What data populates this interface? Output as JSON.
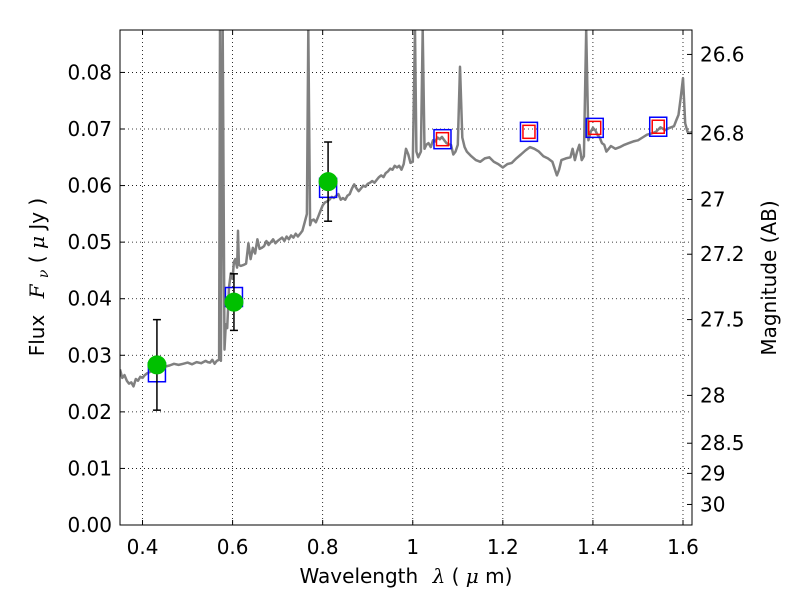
{
  "chart_data": {
    "type": "line",
    "xlabel_prefix": "Wavelength",
    "xlabel_symbol": "λ",
    "xlabel_unit_open": " (",
    "xlabel_unit_mu": "μ",
    "xlabel_unit_close": "m)",
    "ylabel_prefix": "Flux",
    "ylabel_symbol": "F",
    "ylabel_sub": "ν",
    "ylabel_unit_open": " ( ",
    "ylabel_unit_mu": "μ",
    "ylabel_unit_close": "Jy )",
    "y2label": "Magnitude (AB)",
    "xlim": [
      0.35,
      1.62
    ],
    "ylim": [
      0.0,
      0.0875
    ],
    "grid": true,
    "x_ticks": [
      {
        "v": 0.4,
        "label": "0.4"
      },
      {
        "v": 0.6,
        "label": "0.6"
      },
      {
        "v": 0.8,
        "label": "0.8"
      },
      {
        "v": 1.0,
        "label": "1"
      },
      {
        "v": 1.2,
        "label": "1.2"
      },
      {
        "v": 1.4,
        "label": "1.4"
      },
      {
        "v": 1.6,
        "label": "1.6"
      }
    ],
    "y_ticks": [
      {
        "v": 0.0,
        "label": "0.00"
      },
      {
        "v": 0.01,
        "label": "0.01"
      },
      {
        "v": 0.02,
        "label": "0.02"
      },
      {
        "v": 0.03,
        "label": "0.03"
      },
      {
        "v": 0.04,
        "label": "0.04"
      },
      {
        "v": 0.05,
        "label": "0.05"
      },
      {
        "v": 0.06,
        "label": "0.06"
      },
      {
        "v": 0.07,
        "label": "0.07"
      },
      {
        "v": 0.08,
        "label": "0.08"
      }
    ],
    "y2_ticks": [
      {
        "mag": 26.6,
        "label": "26.6"
      },
      {
        "mag": 26.8,
        "label": "26.8"
      },
      {
        "mag": 27.0,
        "label": "27"
      },
      {
        "mag": 27.2,
        "label": "27.2"
      },
      {
        "mag": 27.5,
        "label": "27.5"
      },
      {
        "mag": 28.0,
        "label": "28"
      },
      {
        "mag": 28.5,
        "label": "28.5"
      },
      {
        "mag": 29.0,
        "label": "29"
      },
      {
        "mag": 30.0,
        "label": "30"
      }
    ],
    "spectrum": {
      "color": "#808080",
      "points": [
        [
          0.35,
          0.0275
        ],
        [
          0.355,
          0.026
        ],
        [
          0.36,
          0.0265
        ],
        [
          0.365,
          0.0255
        ],
        [
          0.37,
          0.025
        ],
        [
          0.375,
          0.0252
        ],
        [
          0.38,
          0.0245
        ],
        [
          0.385,
          0.0258
        ],
        [
          0.39,
          0.0255
        ],
        [
          0.395,
          0.0262
        ],
        [
          0.4,
          0.026
        ],
        [
          0.405,
          0.0265
        ],
        [
          0.41,
          0.0268
        ],
        [
          0.415,
          0.027
        ],
        [
          0.42,
          0.0272
        ],
        [
          0.43,
          0.0275
        ],
        [
          0.44,
          0.0278
        ],
        [
          0.45,
          0.028
        ],
        [
          0.46,
          0.0282
        ],
        [
          0.47,
          0.0285
        ],
        [
          0.48,
          0.0283
        ],
        [
          0.49,
          0.0285
        ],
        [
          0.5,
          0.0287
        ],
        [
          0.51,
          0.0284
        ],
        [
          0.52,
          0.0288
        ],
        [
          0.53,
          0.0286
        ],
        [
          0.54,
          0.029
        ],
        [
          0.545,
          0.0288
        ],
        [
          0.55,
          0.0287
        ],
        [
          0.555,
          0.0292
        ],
        [
          0.56,
          0.0285
        ],
        [
          0.565,
          0.029
        ],
        [
          0.57,
          0.0292
        ],
        [
          0.572,
          0.0875
        ],
        [
          0.574,
          0.029
        ],
        [
          0.578,
          0.0875
        ],
        [
          0.582,
          0.031
        ],
        [
          0.585,
          0.0355
        ],
        [
          0.588,
          0.0348
        ],
        [
          0.592,
          0.042
        ],
        [
          0.596,
          0.0445
        ],
        [
          0.6,
          0.0435
        ],
        [
          0.603,
          0.0465
        ],
        [
          0.606,
          0.047
        ],
        [
          0.61,
          0.0455
        ],
        [
          0.612,
          0.052
        ],
        [
          0.614,
          0.046
        ],
        [
          0.618,
          0.0458
        ],
        [
          0.625,
          0.046
        ],
        [
          0.63,
          0.0462
        ],
        [
          0.635,
          0.0498
        ],
        [
          0.64,
          0.047
        ],
        [
          0.645,
          0.049
        ],
        [
          0.65,
          0.048
        ],
        [
          0.655,
          0.0505
        ],
        [
          0.66,
          0.0488
        ],
        [
          0.665,
          0.049
        ],
        [
          0.67,
          0.0493
        ],
        [
          0.675,
          0.0502
        ],
        [
          0.68,
          0.0495
        ],
        [
          0.685,
          0.05
        ],
        [
          0.69,
          0.0505
        ],
        [
          0.695,
          0.0498
        ],
        [
          0.7,
          0.0502
        ],
        [
          0.705,
          0.0505
        ],
        [
          0.71,
          0.0508
        ],
        [
          0.715,
          0.0502
        ],
        [
          0.72,
          0.051
        ],
        [
          0.725,
          0.0505
        ],
        [
          0.73,
          0.0512
        ],
        [
          0.735,
          0.0508
        ],
        [
          0.74,
          0.0515
        ],
        [
          0.745,
          0.051
        ],
        [
          0.75,
          0.0515
        ],
        [
          0.755,
          0.052
        ],
        [
          0.76,
          0.0535
        ],
        [
          0.765,
          0.055
        ],
        [
          0.768,
          0.0875
        ],
        [
          0.772,
          0.053
        ],
        [
          0.775,
          0.0538
        ],
        [
          0.78,
          0.054
        ],
        [
          0.785,
          0.0535
        ],
        [
          0.79,
          0.0545
        ],
        [
          0.795,
          0.0555
        ],
        [
          0.8,
          0.0565
        ],
        [
          0.805,
          0.057
        ],
        [
          0.81,
          0.0572
        ],
        [
          0.815,
          0.0575
        ],
        [
          0.82,
          0.058
        ],
        [
          0.825,
          0.0578
        ],
        [
          0.83,
          0.0582
        ],
        [
          0.835,
          0.0585
        ],
        [
          0.84,
          0.0575
        ],
        [
          0.845,
          0.0578
        ],
        [
          0.85,
          0.0575
        ],
        [
          0.855,
          0.0582
        ],
        [
          0.86,
          0.0585
        ],
        [
          0.865,
          0.0595
        ],
        [
          0.87,
          0.0602
        ],
        [
          0.875,
          0.0595
        ],
        [
          0.88,
          0.059
        ],
        [
          0.885,
          0.0595
        ],
        [
          0.89,
          0.06
        ],
        [
          0.895,
          0.0598
        ],
        [
          0.9,
          0.0603
        ],
        [
          0.905,
          0.0605
        ],
        [
          0.91,
          0.0608
        ],
        [
          0.915,
          0.0605
        ],
        [
          0.92,
          0.061
        ],
        [
          0.925,
          0.0615
        ],
        [
          0.93,
          0.0618
        ],
        [
          0.935,
          0.0615
        ],
        [
          0.94,
          0.0622
        ],
        [
          0.945,
          0.0625
        ],
        [
          0.95,
          0.063
        ],
        [
          0.955,
          0.0628
        ],
        [
          0.96,
          0.0635
        ],
        [
          0.965,
          0.0632
        ],
        [
          0.97,
          0.0635
        ],
        [
          0.975,
          0.0628
        ],
        [
          0.98,
          0.0638
        ],
        [
          0.985,
          0.0665
        ],
        [
          0.99,
          0.0655
        ],
        [
          0.995,
          0.064
        ],
        [
          1.0,
          0.0642
        ],
        [
          1.005,
          0.0875
        ],
        [
          1.008,
          0.066
        ],
        [
          1.012,
          0.065
        ],
        [
          1.018,
          0.066
        ],
        [
          1.022,
          0.0875
        ],
        [
          1.026,
          0.0665
        ],
        [
          1.03,
          0.0672
        ],
        [
          1.035,
          0.0675
        ],
        [
          1.04,
          0.0668
        ],
        [
          1.045,
          0.068
        ],
        [
          1.05,
          0.0678
        ],
        [
          1.055,
          0.0685
        ],
        [
          1.06,
          0.0682
        ],
        [
          1.065,
          0.0686
        ],
        [
          1.07,
          0.068
        ],
        [
          1.075,
          0.0675
        ],
        [
          1.08,
          0.0673
        ],
        [
          1.085,
          0.0672
        ],
        [
          1.09,
          0.0655
        ],
        [
          1.095,
          0.066
        ],
        [
          1.1,
          0.0672
        ],
        [
          1.105,
          0.081
        ],
        [
          1.11,
          0.0685
        ],
        [
          1.115,
          0.0668
        ],
        [
          1.12,
          0.066
        ],
        [
          1.13,
          0.0652
        ],
        [
          1.14,
          0.0645
        ],
        [
          1.15,
          0.0642
        ],
        [
          1.16,
          0.0648
        ],
        [
          1.17,
          0.065
        ],
        [
          1.18,
          0.0642
        ],
        [
          1.19,
          0.0638
        ],
        [
          1.2,
          0.0632
        ],
        [
          1.21,
          0.0638
        ],
        [
          1.22,
          0.064
        ],
        [
          1.23,
          0.0648
        ],
        [
          1.24,
          0.0655
        ],
        [
          1.25,
          0.0662
        ],
        [
          1.26,
          0.0668
        ],
        [
          1.27,
          0.0665
        ],
        [
          1.28,
          0.066
        ],
        [
          1.29,
          0.0652
        ],
        [
          1.3,
          0.0648
        ],
        [
          1.31,
          0.0642
        ],
        [
          1.32,
          0.0618
        ],
        [
          1.325,
          0.0628
        ],
        [
          1.33,
          0.0645
        ],
        [
          1.34,
          0.0648
        ],
        [
          1.35,
          0.065
        ],
        [
          1.355,
          0.0665
        ],
        [
          1.36,
          0.0645
        ],
        [
          1.365,
          0.066
        ],
        [
          1.37,
          0.0672
        ],
        [
          1.375,
          0.0645
        ],
        [
          1.38,
          0.0652
        ],
        [
          1.385,
          0.0875
        ],
        [
          1.39,
          0.068
        ],
        [
          1.395,
          0.0695
        ],
        [
          1.4,
          0.0702
        ],
        [
          1.405,
          0.0698
        ],
        [
          1.41,
          0.069
        ],
        [
          1.415,
          0.0685
        ],
        [
          1.42,
          0.0675
        ],
        [
          1.425,
          0.0672
        ],
        [
          1.43,
          0.066
        ],
        [
          1.435,
          0.0665
        ],
        [
          1.44,
          0.067
        ],
        [
          1.45,
          0.0665
        ],
        [
          1.46,
          0.0668
        ],
        [
          1.47,
          0.0672
        ],
        [
          1.48,
          0.0675
        ],
        [
          1.49,
          0.0678
        ],
        [
          1.5,
          0.068
        ],
        [
          1.51,
          0.0685
        ],
        [
          1.52,
          0.069
        ],
        [
          1.53,
          0.0692
        ],
        [
          1.54,
          0.0695
        ],
        [
          1.55,
          0.0703
        ],
        [
          1.56,
          0.0698
        ],
        [
          1.57,
          0.0702
        ],
        [
          1.58,
          0.0705
        ],
        [
          1.585,
          0.0715
        ],
        [
          1.59,
          0.0725
        ],
        [
          1.595,
          0.0755
        ],
        [
          1.6,
          0.079
        ],
        [
          1.605,
          0.071
        ],
        [
          1.61,
          0.0695
        ],
        [
          1.615,
          0.0693
        ],
        [
          1.62,
          0.0695
        ]
      ]
    },
    "measurements": [
      {
        "x": 0.432,
        "y": 0.0283,
        "err": 0.008,
        "color": "#00c000"
      },
      {
        "x": 0.603,
        "y": 0.0394,
        "err": 0.005,
        "color": "#00c000"
      },
      {
        "x": 0.812,
        "y": 0.0607,
        "err": 0.007,
        "color": "#00c000"
      }
    ],
    "synthetic_blue": {
      "color": "#0000ff",
      "points": [
        [
          0.432,
          0.027
        ],
        [
          0.603,
          0.0403
        ],
        [
          0.812,
          0.0596
        ],
        [
          1.066,
          0.0682
        ],
        [
          1.258,
          0.0695
        ],
        [
          1.404,
          0.0702
        ],
        [
          1.545,
          0.0704
        ]
      ]
    },
    "synthetic_red": {
      "color": "#ff0000",
      "points": [
        [
          1.066,
          0.0682
        ],
        [
          1.258,
          0.0695
        ],
        [
          1.404,
          0.0702
        ],
        [
          1.545,
          0.0704
        ]
      ]
    }
  }
}
